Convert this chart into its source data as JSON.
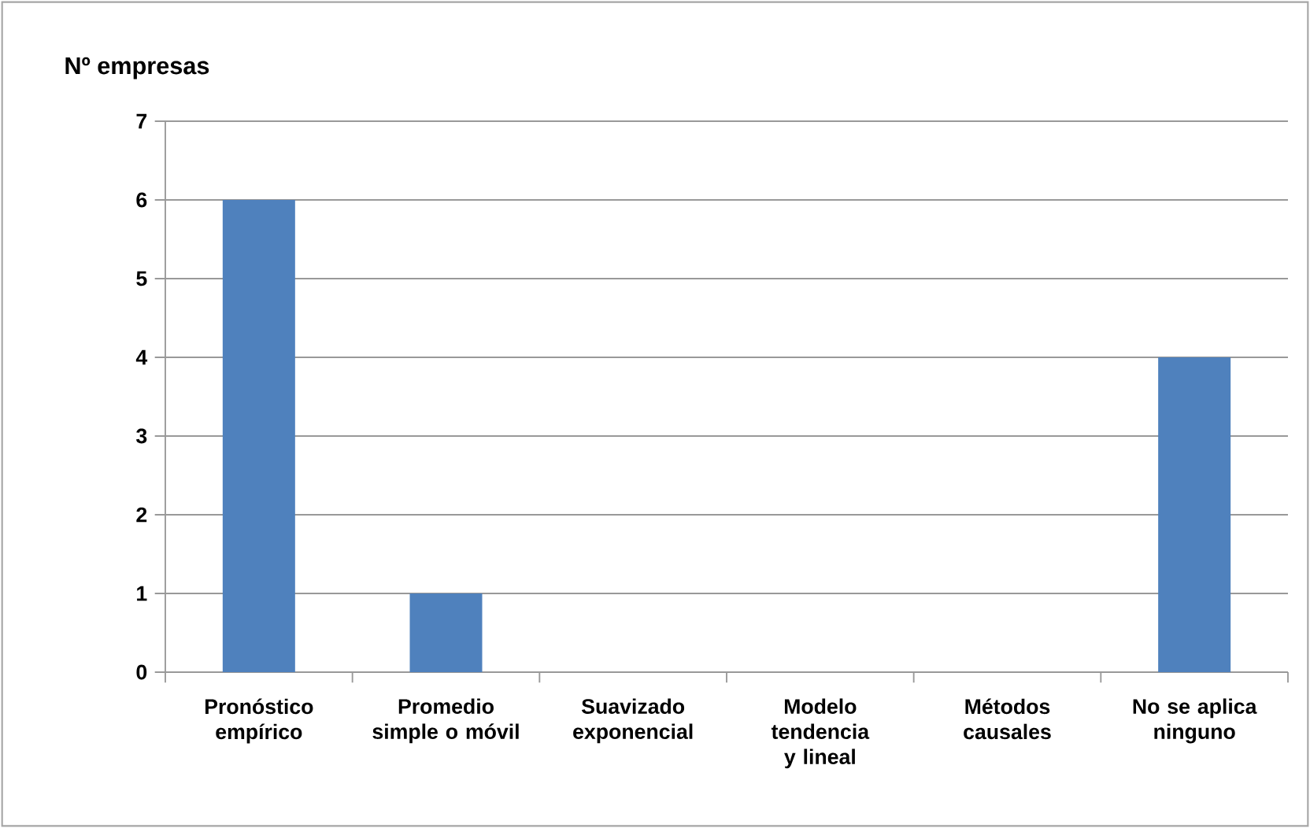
{
  "chart_data": {
    "type": "bar",
    "ylabel": "Nº empresas",
    "categories": [
      "Pronóstico empírico",
      "Promedio simple o móvil",
      "Suavizado exponencial",
      "Modelo tendencia y lineal",
      "Métodos causales",
      "No se aplica ninguno"
    ],
    "values": [
      6,
      1,
      0,
      0,
      0,
      4
    ],
    "color": "#4f81bd",
    "ylim": [
      0,
      7
    ],
    "yticks": [
      0,
      1,
      2,
      3,
      4,
      5,
      6,
      7
    ],
    "grid": "y"
  }
}
